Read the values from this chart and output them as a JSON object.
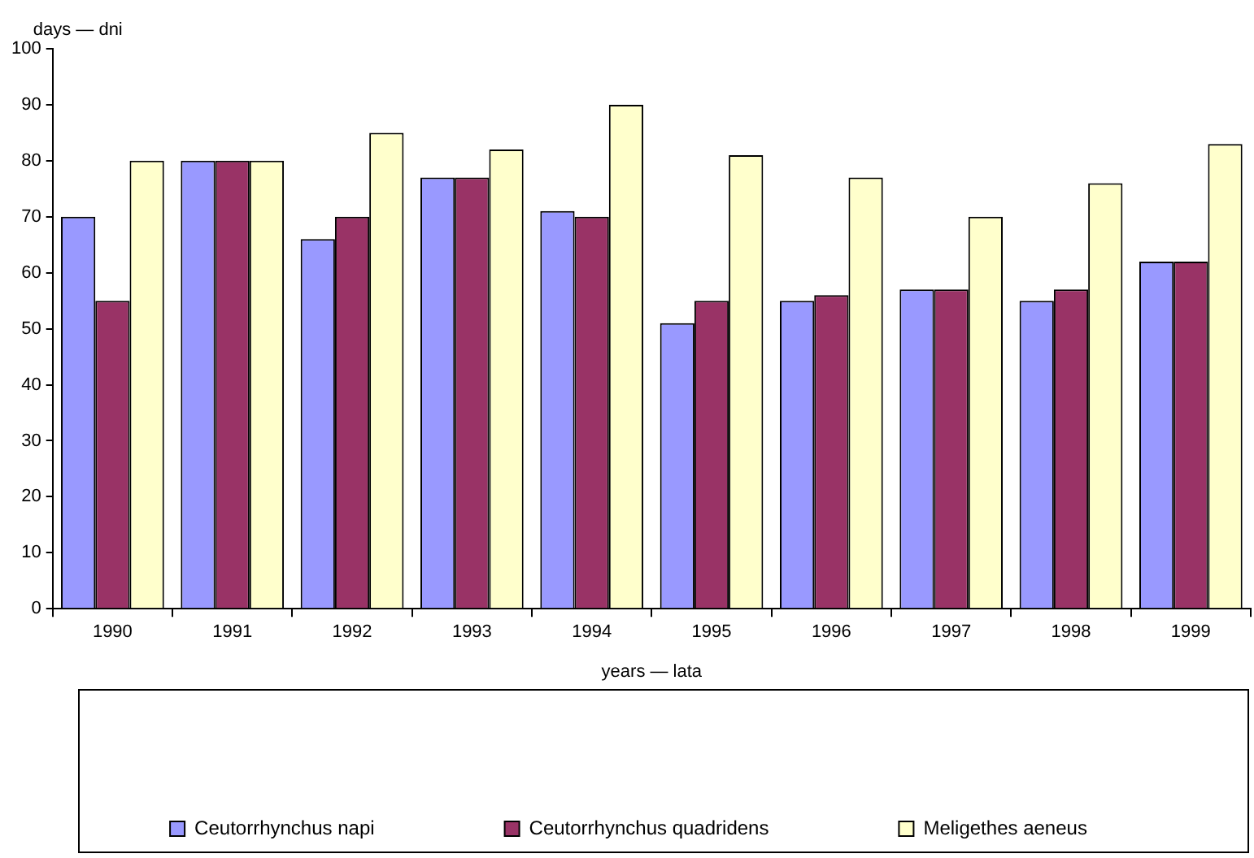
{
  "chart_data": {
    "type": "bar",
    "ylabel": "days — dni",
    "xlabel": "years — lata",
    "categories": [
      "1990",
      "1991",
      "1992",
      "1993",
      "1994",
      "1995",
      "1996",
      "1997",
      "1998",
      "1999"
    ],
    "series": [
      {
        "name": "Ceutorrhynchus napi",
        "color": "#9999ff",
        "values": [
          70,
          80,
          66,
          77,
          71,
          51,
          55,
          57,
          55,
          62
        ]
      },
      {
        "name": "Ceutorrhynchus quadridens",
        "color": "#993366",
        "values": [
          55,
          80,
          70,
          77,
          70,
          55,
          56,
          57,
          57,
          62
        ]
      },
      {
        "name": "Meligethes aeneus",
        "color": "#ffffcc",
        "values": [
          80,
          80,
          85,
          82,
          90,
          81,
          77,
          70,
          76,
          83
        ]
      }
    ],
    "ylim": [
      0,
      100
    ],
    "yticks": [
      0,
      10,
      20,
      30,
      40,
      50,
      60,
      70,
      80,
      90,
      100
    ],
    "grid": false,
    "legend": "bottom"
  }
}
